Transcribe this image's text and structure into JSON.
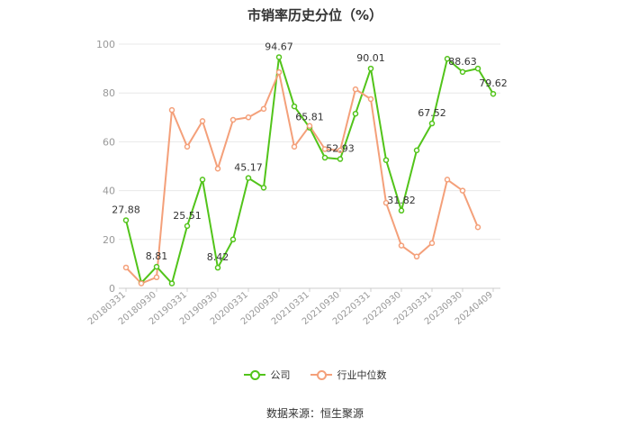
{
  "chart_data": {
    "type": "line",
    "title": "市销率历史分位（%）",
    "xlabel": "",
    "ylabel": "",
    "ylim": [
      0,
      100
    ],
    "yticks": [
      0,
      20,
      40,
      60,
      80,
      100
    ],
    "grid": true,
    "legend_position": "bottom",
    "tick_labels": [
      "20180331",
      "20180930",
      "20190331",
      "20190930",
      "20200331",
      "20200930",
      "20210331",
      "20210930",
      "20220331",
      "20220930",
      "20230331",
      "20230930",
      "20240409"
    ],
    "x": [
      "20180331",
      "20180630",
      "20180930",
      "20181231",
      "20190331",
      "20190630",
      "20190930",
      "20191231",
      "20200331",
      "20200630",
      "20200930",
      "20201231",
      "20210331",
      "20210630",
      "20210930",
      "20211231",
      "20220331",
      "20220630",
      "20220930",
      "20221231",
      "20230331",
      "20230630",
      "20230930",
      "20231231",
      "20240409"
    ],
    "series": [
      {
        "name": "公司",
        "color": "#52c41a",
        "values": [
          27.88,
          2.2,
          8.81,
          2.0,
          25.51,
          44.5,
          8.42,
          20.0,
          45.17,
          41.2,
          94.67,
          74.5,
          65.81,
          53.5,
          52.93,
          71.5,
          90.01,
          52.5,
          31.82,
          56.5,
          67.52,
          94.0,
          88.63,
          90.0,
          79.62
        ],
        "labels": {
          "0": "27.88",
          "2": "8.81",
          "4": "25.51",
          "6": "8.42",
          "8": "45.17",
          "10": "94.67",
          "12": "65.81",
          "14": "52.93",
          "16": "90.01",
          "18": "31.82",
          "20": "67.52",
          "22": "88.63",
          "24": "79.62"
        }
      },
      {
        "name": "行业中位数",
        "color": "#f4a07a",
        "values": [
          8.5,
          2.0,
          4.5,
          73.0,
          58.0,
          68.5,
          49.0,
          69.0,
          70.0,
          73.5,
          88.5,
          58.0,
          66.5,
          57.0,
          56.5,
          81.5,
          77.5,
          35.0,
          17.5,
          13.0,
          18.5,
          44.5,
          40.0,
          25.0,
          null
        ]
      }
    ]
  },
  "legend": [
    "公司",
    "行业中位数"
  ],
  "source_text": "数据来源：恒生聚源"
}
